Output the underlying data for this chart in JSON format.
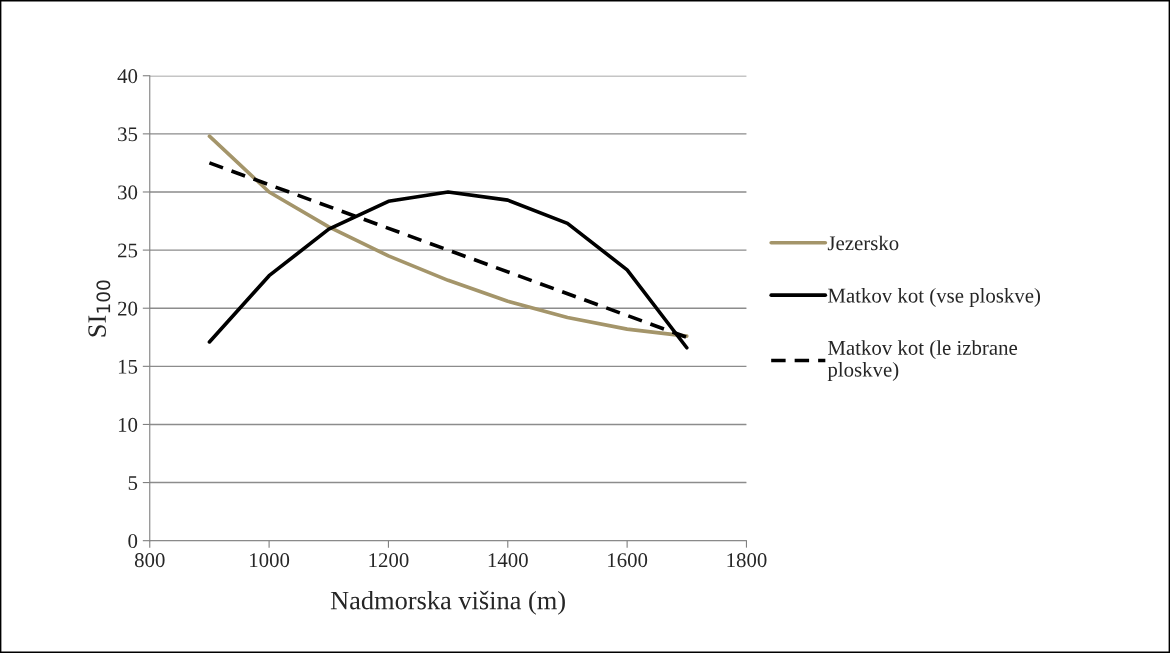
{
  "chart_data": {
    "type": "line",
    "xlabel": "Nadmorska višina (m)",
    "ylabel": "SI$_{100}$",
    "xlim": [
      800,
      1800
    ],
    "xticks": [
      800,
      1000,
      1200,
      1400,
      1600,
      1800
    ],
    "ylim": [
      0,
      40
    ],
    "yticks": [
      0,
      5,
      10,
      15,
      20,
      25,
      30,
      35,
      40
    ],
    "grid": "y",
    "legend": "right",
    "marker": "none",
    "series": [
      {
        "name": "Jezersko",
        "color": "#a4956a",
        "line_style": "solid",
        "x": [
          900,
          1000,
          1100,
          1200,
          1300,
          1400,
          1500,
          1600,
          1700
        ],
        "values": [
          34.8,
          30.0,
          27.0,
          24.5,
          22.4,
          20.6,
          19.2,
          18.2,
          17.6
        ]
      },
      {
        "name": "Matkov kot (vse ploskve)",
        "color": "#000000",
        "line_style": "solid",
        "x": [
          900,
          1000,
          1100,
          1200,
          1300,
          1400,
          1500,
          1600,
          1700
        ],
        "values": [
          17.1,
          22.8,
          26.8,
          29.2,
          30.0,
          29.3,
          27.3,
          23.3,
          16.6
        ]
      },
      {
        "name": "Matkov kot (le izbrane\nploskve)",
        "color": "#000000",
        "line_style": "dashed",
        "x": [
          900,
          1700
        ],
        "values": [
          32.5,
          17.5
        ]
      }
    ]
  }
}
